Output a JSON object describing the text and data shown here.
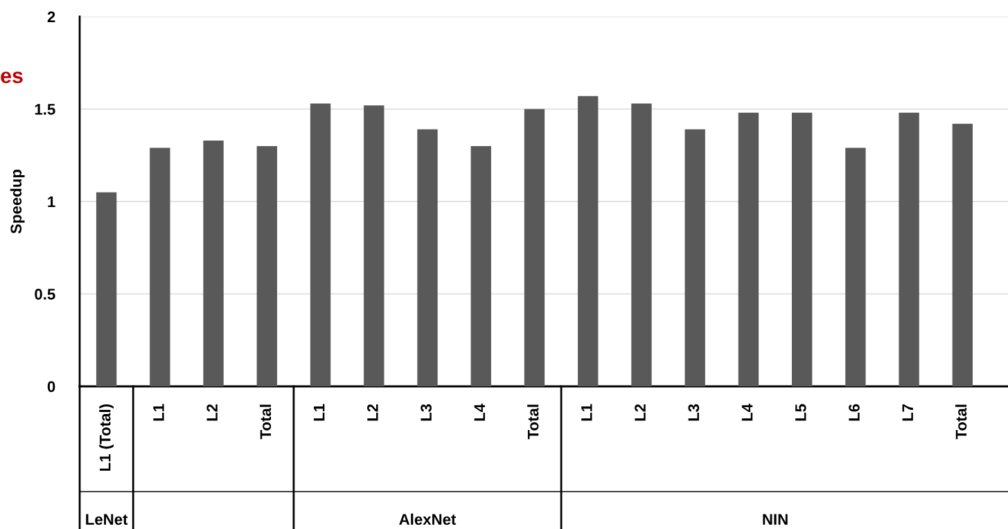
{
  "chart_data": {
    "type": "bar",
    "ylabel": "Speedup",
    "categories": [
      "L1 (Total)",
      "L1",
      "L2",
      "Total",
      "L1",
      "L2",
      "L3",
      "L4",
      "Total",
      "L1",
      "L2",
      "L3",
      "L4",
      "L5",
      "L6",
      "L7",
      "Total"
    ],
    "values": [
      1.05,
      1.29,
      1.33,
      1.3,
      1.53,
      1.52,
      1.39,
      1.3,
      1.5,
      1.57,
      1.53,
      1.39,
      1.48,
      1.48,
      1.29,
      1.48,
      1.42
    ],
    "color": "#595959",
    "ylim": [
      0,
      2
    ],
    "yticks": [
      0,
      {
        "value": 0.5,
        "label": "0.5"
      },
      1,
      {
        "value": 1.5,
        "label": "1.5"
      },
      2
    ],
    "grid": "y",
    "annotations": [
      "es",
      "LeNet",
      "AlexNet",
      "NIN"
    ]
  }
}
